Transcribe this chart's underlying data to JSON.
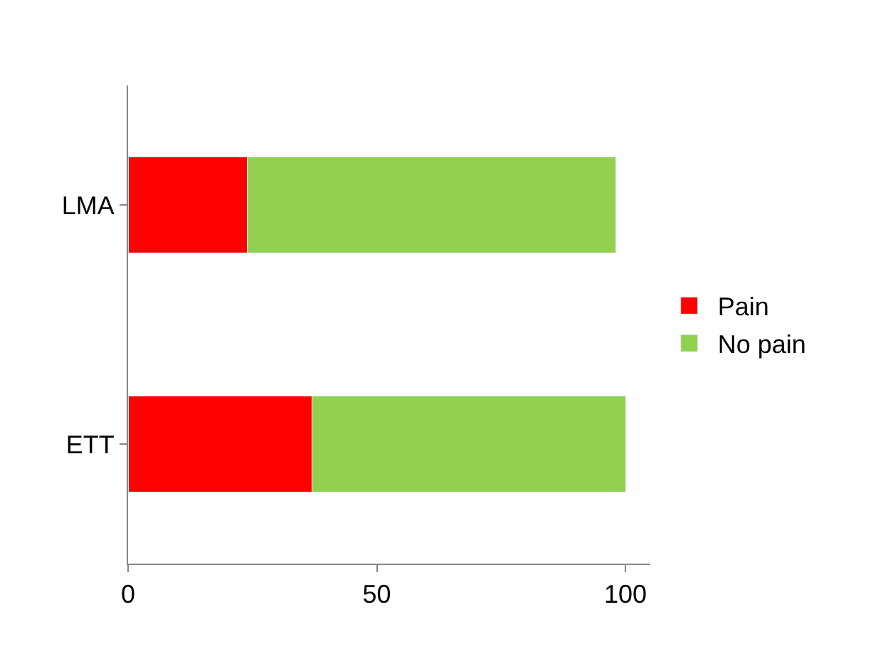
{
  "chart_data": {
    "type": "bar",
    "orientation": "horizontal",
    "stacked": true,
    "categories": [
      "LMA",
      "ETT"
    ],
    "series": [
      {
        "name": "Pain",
        "color": "#ff0000",
        "values": [
          24,
          37
        ]
      },
      {
        "name": "No pain",
        "color": "#92d050",
        "values": [
          74,
          63
        ]
      }
    ],
    "xlim": [
      0,
      105
    ],
    "xticks": [
      0,
      50,
      100
    ],
    "legend": "right"
  }
}
